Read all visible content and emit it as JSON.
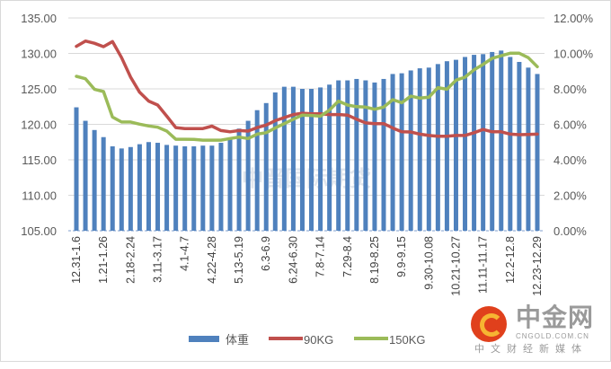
{
  "chart_data": {
    "type": "bar+line",
    "title": "",
    "xlabel": "",
    "ylabel": "",
    "y_left": {
      "range": [
        105,
        135
      ],
      "ticks": [
        "105.00",
        "110.00",
        "115.00",
        "120.00",
        "125.00",
        "130.00",
        "135.00"
      ]
    },
    "y_right": {
      "range": [
        0,
        12
      ],
      "unit": "%",
      "ticks": [
        "0.00%",
        "2.00%",
        "4.00%",
        "6.00%",
        "8.00%",
        "10.00%",
        "12.00%"
      ]
    },
    "x_tick_labels": [
      "12.31-1.6",
      "1.21-1.26",
      "2.18-2.24",
      "3.11-3.17",
      "4.1-4.7",
      "4.22-4.28",
      "5.13-5.19",
      "6.3-6.9",
      "6.24-6.30",
      "7.8-7.14",
      "7.29-8.4",
      "8.19-8.25",
      "9.9-9.15",
      "9.30-10.08",
      "10.21-10.27",
      "11.11-11.17",
      "12.2-12.8",
      "12.23-12.29"
    ],
    "x_tick_every": 3,
    "grid": true,
    "legend_position": "bottom",
    "series": [
      {
        "name": "体重",
        "type": "bar",
        "axis": "left",
        "color": "#4f81bd",
        "values": [
          122.4,
          120.5,
          119.2,
          118.2,
          116.9,
          116.6,
          116.8,
          117.2,
          117.5,
          117.4,
          117.1,
          117.0,
          116.9,
          116.9,
          117.0,
          117.0,
          117.4,
          118.0,
          119.4,
          120.5,
          122.0,
          123.0,
          124.5,
          125.3,
          125.3,
          125.0,
          125.0,
          125.2,
          125.6,
          126.2,
          126.2,
          126.4,
          126.2,
          125.9,
          126.4,
          127.1,
          127.2,
          127.6,
          127.9,
          128.0,
          128.5,
          128.9,
          129.1,
          129.5,
          129.8,
          129.9,
          130.2,
          130.4,
          129.5,
          128.8,
          128.0,
          127.1
        ]
      },
      {
        "name": "90KG",
        "type": "line",
        "axis": "right",
        "color": "#c0504d",
        "values": [
          10.4,
          10.7,
          10.57,
          10.38,
          10.67,
          9.76,
          8.66,
          7.81,
          7.31,
          7.09,
          6.46,
          5.82,
          5.76,
          5.76,
          5.76,
          5.9,
          5.65,
          5.58,
          5.65,
          5.62,
          5.82,
          5.96,
          6.21,
          6.38,
          6.55,
          6.63,
          6.6,
          6.6,
          6.55,
          6.55,
          6.52,
          6.29,
          6.08,
          6.04,
          6.04,
          5.79,
          5.58,
          5.57,
          5.45,
          5.37,
          5.33,
          5.33,
          5.37,
          5.37,
          5.53,
          5.71,
          5.58,
          5.58,
          5.45,
          5.42,
          5.43,
          5.45
        ]
      },
      {
        "name": "150KG",
        "type": "line",
        "axis": "right",
        "color": "#9bbb59",
        "values": [
          8.71,
          8.57,
          7.98,
          7.85,
          6.41,
          6.13,
          6.13,
          6.01,
          5.91,
          5.84,
          5.62,
          5.16,
          5.16,
          5.15,
          5.11,
          5.11,
          5.11,
          5.2,
          5.28,
          5.2,
          5.45,
          5.53,
          5.79,
          6.04,
          6.29,
          6.52,
          6.5,
          6.46,
          6.8,
          7.31,
          7.09,
          7.0,
          6.97,
          6.85,
          6.97,
          7.39,
          7.22,
          7.59,
          7.48,
          7.53,
          8.07,
          7.98,
          8.49,
          8.66,
          9.08,
          9.38,
          9.72,
          9.87,
          10.01,
          10.01,
          9.76,
          9.25
        ]
      }
    ]
  },
  "watermark": "中晋国际期货",
  "logo": {
    "name": "中金网",
    "url": "CNGOLD.COM.CN",
    "tagline": "中文财经新媒体"
  }
}
